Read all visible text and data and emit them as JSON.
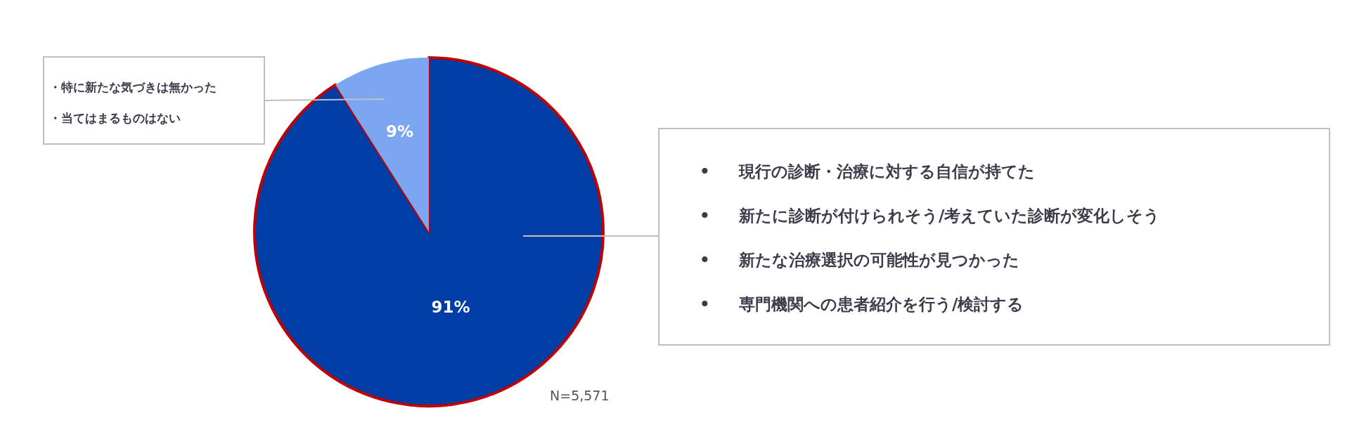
{
  "chart_data": {
    "type": "pie",
    "categories": [
      "• 現行の診断・治療に対する自信が持てた• 新たに診断が付けられそう/考えていた診断が変化しそう• 新たな治療選択の可能性が見つかった• 専門機関への患者紹介を行う/検討する",
      "・特に新たな気づきは無かった・当てはまるものはない"
    ],
    "values": [
      91,
      9
    ],
    "colors": [
      "#003da5",
      "#7ba7f2"
    ],
    "value_labels": [
      "91%",
      "9%"
    ],
    "annotations": [
      "N=5,571"
    ],
    "legend": false
  }
}
